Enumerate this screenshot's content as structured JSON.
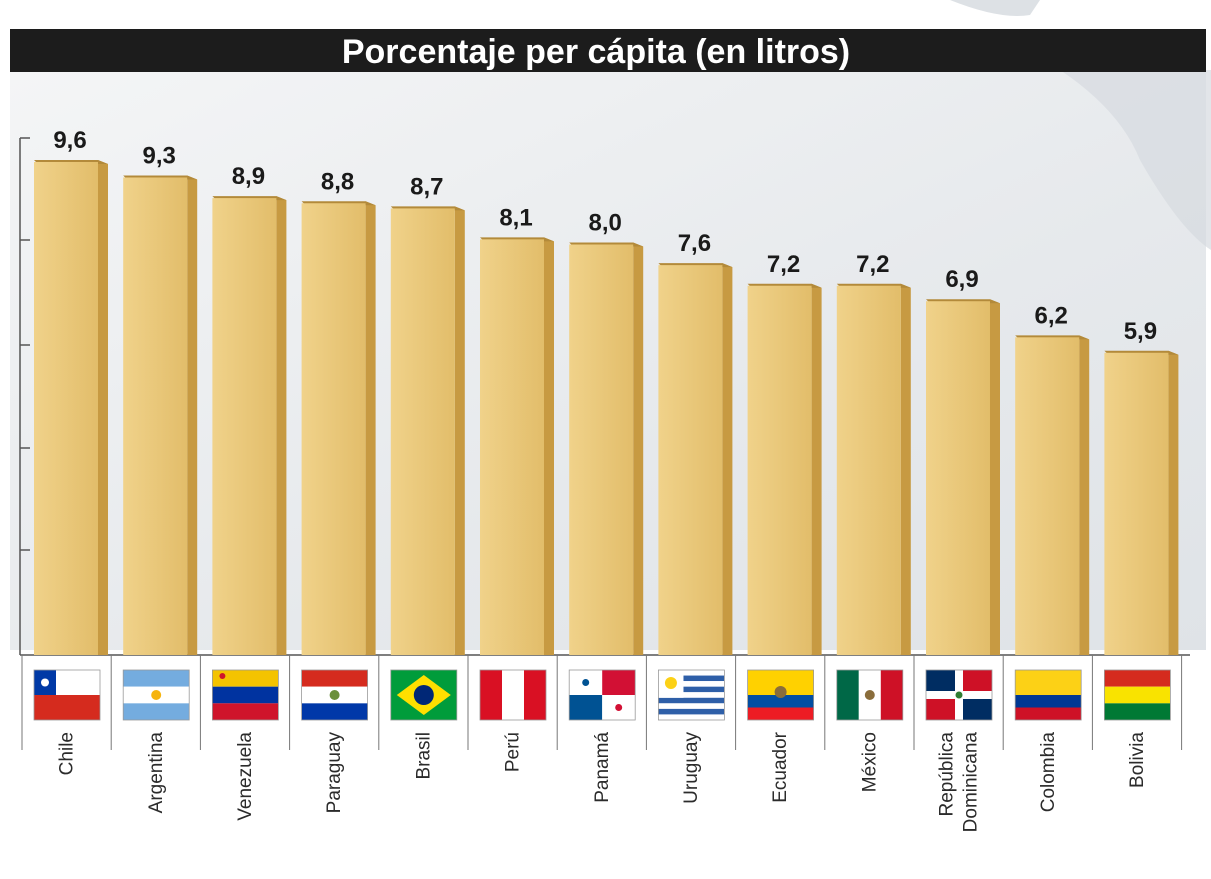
{
  "chart_data": {
    "type": "bar",
    "title": "Porcentaje per cápita (en litros)",
    "categories": [
      "Chile",
      "Argentina",
      "Venezuela",
      "Paraguay",
      "Brasil",
      "Perú",
      "Panamá",
      "Uruguay",
      "Ecuador",
      "México",
      "República Dominicana",
      "Colombia",
      "Bolivia"
    ],
    "values": [
      9.6,
      9.3,
      8.9,
      8.8,
      8.7,
      8.1,
      8.0,
      7.6,
      7.2,
      7.2,
      6.9,
      6.2,
      5.9
    ],
    "value_labels": [
      "9,6",
      "9,3",
      "8,9",
      "8,8",
      "8,7",
      "8,1",
      "8,0",
      "7,6",
      "7,2",
      "7,2",
      "6,9",
      "6,2",
      "5,9"
    ],
    "xlabel": "",
    "ylabel": "",
    "grid": false,
    "colors": {
      "bar_front": "#e8c677",
      "bar_side": "#c79a42",
      "bar_top": "#b38a3a",
      "title_band": "#1c1c1c",
      "title_text": "#ffffff",
      "axis": "#555555",
      "background": "#e9ecef"
    }
  },
  "category_icons": [
    "chile-flag-icon",
    "argentina-flag-icon",
    "venezuela-flag-icon",
    "paraguay-flag-icon",
    "brazil-flag-icon",
    "peru-flag-icon",
    "panama-flag-icon",
    "uruguay-flag-icon",
    "ecuador-flag-icon",
    "mexico-flag-icon",
    "dominican-republic-flag-icon",
    "colombia-flag-icon",
    "bolivia-flag-icon"
  ]
}
